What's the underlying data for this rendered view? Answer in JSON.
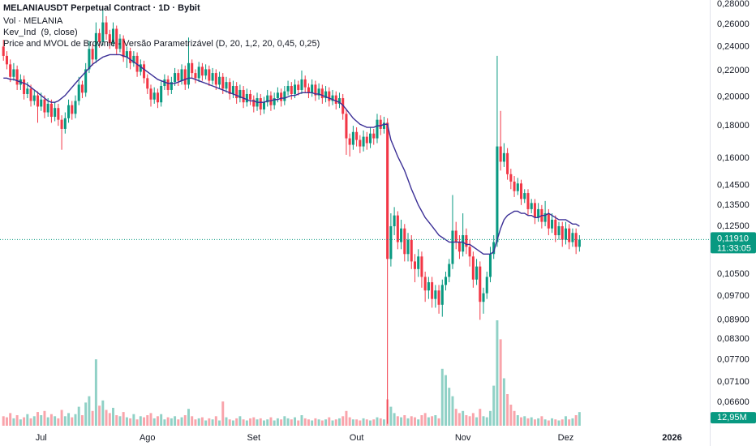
{
  "chart_data": {
    "type": "candlestick",
    "title": "MELANIAUSDT Perpetual Contract · 1D · Bybit",
    "volume_title": "Vol · MELANIA",
    "indicator_title": "Price and MVOL de Browniê - Versão Parametrizável (D, 20, 1,2, 20, 0,45, 0,25)",
    "log_scale": true,
    "grid": false,
    "up_color": "#089981",
    "down_color": "#f23645",
    "ylim": [
      0.0597,
      0.2842
    ],
    "yticks": [
      {
        "value": 0.28,
        "label": "0,28000"
      },
      {
        "value": 0.26,
        "label": "0,26000"
      },
      {
        "value": 0.24,
        "label": "0,24000"
      },
      {
        "value": 0.22,
        "label": "0,22000"
      },
      {
        "value": 0.2,
        "label": "0,20000"
      },
      {
        "value": 0.18,
        "label": "0,18000"
      },
      {
        "value": 0.16,
        "label": "0,16000"
      },
      {
        "value": 0.145,
        "label": "0,14500"
      },
      {
        "value": 0.135,
        "label": "0,13500"
      },
      {
        "value": 0.125,
        "label": "0,12500"
      },
      {
        "value": 0.105,
        "label": "0,10500"
      },
      {
        "value": 0.097,
        "label": "0,09700"
      },
      {
        "value": 0.089,
        "label": "0,08900"
      },
      {
        "value": 0.083,
        "label": "0,08300"
      },
      {
        "value": 0.077,
        "label": "0,07700"
      },
      {
        "value": 0.071,
        "label": "0,07100"
      },
      {
        "value": 0.066,
        "label": "0,06600"
      }
    ],
    "xlim": [
      -1,
      206
    ],
    "xticks": [
      {
        "value": 11,
        "label": "Jul"
      },
      {
        "value": 42,
        "label": "Ago"
      },
      {
        "value": 73,
        "label": "Set"
      },
      {
        "value": 103,
        "label": "Out"
      },
      {
        "value": 134,
        "label": "Nov"
      },
      {
        "value": 164,
        "label": "Dez"
      },
      {
        "value": 195,
        "label": "2026"
      }
    ],
    "last_price": 0.1191,
    "last_price_label": "0,11910",
    "countdown": "11:33:05",
    "volume_label": "12,95M",
    "ohlc": [
      [
        0.24,
        0.246,
        0.228,
        0.232
      ],
      [
        0.232,
        0.236,
        0.221,
        0.225
      ],
      [
        0.225,
        0.229,
        0.211,
        0.215
      ],
      [
        0.215,
        0.226,
        0.212,
        0.221
      ],
      [
        0.221,
        0.224,
        0.205,
        0.209
      ],
      [
        0.209,
        0.217,
        0.205,
        0.213
      ],
      [
        0.213,
        0.216,
        0.198,
        0.202
      ],
      [
        0.202,
        0.211,
        0.199,
        0.206
      ],
      [
        0.206,
        0.209,
        0.193,
        0.197
      ],
      [
        0.197,
        0.205,
        0.194,
        0.201
      ],
      [
        0.201,
        0.204,
        0.182,
        0.193
      ],
      [
        0.193,
        0.203,
        0.19,
        0.198
      ],
      [
        0.198,
        0.201,
        0.185,
        0.189
      ],
      [
        0.189,
        0.199,
        0.186,
        0.195
      ],
      [
        0.195,
        0.198,
        0.182,
        0.186
      ],
      [
        0.186,
        0.196,
        0.183,
        0.192
      ],
      [
        0.192,
        0.195,
        0.18,
        0.184
      ],
      [
        0.184,
        0.187,
        0.165,
        0.178
      ],
      [
        0.178,
        0.189,
        0.175,
        0.185
      ],
      [
        0.185,
        0.198,
        0.182,
        0.194
      ],
      [
        0.194,
        0.197,
        0.184,
        0.188
      ],
      [
        0.188,
        0.201,
        0.185,
        0.197
      ],
      [
        0.197,
        0.215,
        0.194,
        0.209
      ],
      [
        0.209,
        0.212,
        0.199,
        0.203
      ],
      [
        0.203,
        0.226,
        0.2,
        0.221
      ],
      [
        0.221,
        0.245,
        0.218,
        0.238
      ],
      [
        0.238,
        0.242,
        0.224,
        0.229
      ],
      [
        0.229,
        0.262,
        0.226,
        0.252
      ],
      [
        0.252,
        0.256,
        0.239,
        0.244
      ],
      [
        0.244,
        0.275,
        0.241,
        0.262
      ],
      [
        0.262,
        0.268,
        0.246,
        0.251
      ],
      [
        0.251,
        0.255,
        0.238,
        0.243
      ],
      [
        0.243,
        0.262,
        0.24,
        0.256
      ],
      [
        0.256,
        0.259,
        0.233,
        0.238
      ],
      [
        0.238,
        0.251,
        0.235,
        0.247
      ],
      [
        0.247,
        0.25,
        0.227,
        0.231
      ],
      [
        0.231,
        0.24,
        0.222,
        0.236
      ],
      [
        0.236,
        0.239,
        0.221,
        0.226
      ],
      [
        0.226,
        0.236,
        0.223,
        0.232
      ],
      [
        0.232,
        0.235,
        0.215,
        0.219
      ],
      [
        0.219,
        0.229,
        0.216,
        0.225
      ],
      [
        0.225,
        0.228,
        0.21,
        0.214
      ],
      [
        0.214,
        0.217,
        0.202,
        0.206
      ],
      [
        0.206,
        0.209,
        0.193,
        0.198
      ],
      [
        0.198,
        0.207,
        0.195,
        0.203
      ],
      [
        0.203,
        0.206,
        0.192,
        0.196
      ],
      [
        0.196,
        0.212,
        0.193,
        0.208
      ],
      [
        0.208,
        0.217,
        0.205,
        0.213
      ],
      [
        0.213,
        0.216,
        0.201,
        0.205
      ],
      [
        0.205,
        0.215,
        0.202,
        0.211
      ],
      [
        0.211,
        0.222,
        0.208,
        0.218
      ],
      [
        0.218,
        0.221,
        0.208,
        0.212
      ],
      [
        0.212,
        0.225,
        0.209,
        0.221
      ],
      [
        0.221,
        0.224,
        0.205,
        0.209
      ],
      [
        0.209,
        0.248,
        0.206,
        0.226
      ],
      [
        0.226,
        0.229,
        0.214,
        0.218
      ],
      [
        0.218,
        0.221,
        0.21,
        0.214
      ],
      [
        0.214,
        0.227,
        0.211,
        0.223
      ],
      [
        0.223,
        0.226,
        0.212,
        0.216
      ],
      [
        0.216,
        0.225,
        0.213,
        0.221
      ],
      [
        0.221,
        0.224,
        0.208,
        0.212
      ],
      [
        0.212,
        0.222,
        0.209,
        0.218
      ],
      [
        0.218,
        0.221,
        0.205,
        0.209
      ],
      [
        0.209,
        0.219,
        0.206,
        0.215
      ],
      [
        0.215,
        0.218,
        0.202,
        0.206
      ],
      [
        0.206,
        0.215,
        0.203,
        0.211
      ],
      [
        0.211,
        0.214,
        0.198,
        0.202
      ],
      [
        0.202,
        0.212,
        0.199,
        0.208
      ],
      [
        0.208,
        0.211,
        0.195,
        0.199
      ],
      [
        0.199,
        0.209,
        0.196,
        0.205
      ],
      [
        0.205,
        0.208,
        0.192,
        0.196
      ],
      [
        0.196,
        0.206,
        0.193,
        0.202
      ],
      [
        0.202,
        0.205,
        0.194,
        0.198
      ],
      [
        0.198,
        0.201,
        0.189,
        0.193
      ],
      [
        0.193,
        0.203,
        0.19,
        0.199
      ],
      [
        0.199,
        0.202,
        0.187,
        0.191
      ],
      [
        0.191,
        0.2,
        0.188,
        0.196
      ],
      [
        0.196,
        0.205,
        0.193,
        0.201
      ],
      [
        0.201,
        0.204,
        0.19,
        0.194
      ],
      [
        0.194,
        0.203,
        0.191,
        0.199
      ],
      [
        0.199,
        0.207,
        0.196,
        0.203
      ],
      [
        0.203,
        0.206,
        0.193,
        0.197
      ],
      [
        0.197,
        0.208,
        0.194,
        0.204
      ],
      [
        0.204,
        0.212,
        0.201,
        0.208
      ],
      [
        0.208,
        0.211,
        0.198,
        0.202
      ],
      [
        0.202,
        0.213,
        0.199,
        0.209
      ],
      [
        0.209,
        0.212,
        0.201,
        0.205
      ],
      [
        0.205,
        0.22,
        0.202,
        0.213
      ],
      [
        0.213,
        0.216,
        0.203,
        0.207
      ],
      [
        0.207,
        0.21,
        0.199,
        0.203
      ],
      [
        0.203,
        0.213,
        0.2,
        0.209
      ],
      [
        0.209,
        0.212,
        0.197,
        0.201
      ],
      [
        0.201,
        0.21,
        0.198,
        0.206
      ],
      [
        0.206,
        0.209,
        0.195,
        0.199
      ],
      [
        0.199,
        0.208,
        0.196,
        0.204
      ],
      [
        0.204,
        0.207,
        0.193,
        0.197
      ],
      [
        0.197,
        0.205,
        0.194,
        0.201
      ],
      [
        0.201,
        0.204,
        0.191,
        0.195
      ],
      [
        0.195,
        0.203,
        0.192,
        0.199
      ],
      [
        0.199,
        0.202,
        0.184,
        0.188
      ],
      [
        0.188,
        0.191,
        0.162,
        0.172
      ],
      [
        0.172,
        0.175,
        0.161,
        0.168
      ],
      [
        0.168,
        0.18,
        0.165,
        0.176
      ],
      [
        0.176,
        0.179,
        0.167,
        0.171
      ],
      [
        0.171,
        0.174,
        0.163,
        0.167
      ],
      [
        0.167,
        0.177,
        0.164,
        0.173
      ],
      [
        0.173,
        0.176,
        0.165,
        0.169
      ],
      [
        0.169,
        0.179,
        0.166,
        0.175
      ],
      [
        0.175,
        0.178,
        0.168,
        0.172
      ],
      [
        0.172,
        0.188,
        0.169,
        0.184
      ],
      [
        0.184,
        0.187,
        0.174,
        0.178
      ],
      [
        0.178,
        0.186,
        0.175,
        0.182
      ],
      [
        0.182,
        0.185,
        0.061,
        0.111
      ],
      [
        0.111,
        0.131,
        0.108,
        0.125
      ],
      [
        0.125,
        0.134,
        0.121,
        0.13
      ],
      [
        0.13,
        0.132,
        0.115,
        0.118
      ],
      [
        0.118,
        0.128,
        0.115,
        0.124
      ],
      [
        0.124,
        0.126,
        0.11,
        0.113
      ],
      [
        0.113,
        0.122,
        0.11,
        0.119
      ],
      [
        0.119,
        0.121,
        0.107,
        0.11
      ],
      [
        0.11,
        0.113,
        0.102,
        0.107
      ],
      [
        0.107,
        0.115,
        0.104,
        0.112
      ],
      [
        0.112,
        0.114,
        0.1,
        0.104
      ],
      [
        0.104,
        0.106,
        0.095,
        0.099
      ],
      [
        0.099,
        0.104,
        0.096,
        0.102
      ],
      [
        0.102,
        0.104,
        0.093,
        0.096
      ],
      [
        0.096,
        0.101,
        0.093,
        0.099
      ],
      [
        0.099,
        0.101,
        0.091,
        0.094
      ],
      [
        0.094,
        0.103,
        0.09,
        0.101
      ],
      [
        0.101,
        0.106,
        0.099,
        0.104
      ],
      [
        0.104,
        0.111,
        0.102,
        0.109
      ],
      [
        0.109,
        0.14,
        0.107,
        0.123
      ],
      [
        0.123,
        0.127,
        0.115,
        0.118
      ],
      [
        0.118,
        0.121,
        0.111,
        0.114
      ],
      [
        0.114,
        0.131,
        0.112,
        0.121
      ],
      [
        0.121,
        0.124,
        0.113,
        0.116
      ],
      [
        0.116,
        0.119,
        0.108,
        0.112
      ],
      [
        0.112,
        0.114,
        0.1,
        0.103
      ],
      [
        0.103,
        0.111,
        0.101,
        0.108
      ],
      [
        0.108,
        0.11,
        0.089,
        0.095
      ],
      [
        0.095,
        0.1,
        0.091,
        0.098
      ],
      [
        0.098,
        0.106,
        0.096,
        0.104
      ],
      [
        0.104,
        0.116,
        0.102,
        0.113
      ],
      [
        0.113,
        0.121,
        0.111,
        0.118
      ],
      [
        0.118,
        0.232,
        0.116,
        0.167
      ],
      [
        0.167,
        0.19,
        0.153,
        0.158
      ],
      [
        0.158,
        0.169,
        0.155,
        0.163
      ],
      [
        0.163,
        0.166,
        0.148,
        0.151
      ],
      [
        0.151,
        0.154,
        0.143,
        0.147
      ],
      [
        0.147,
        0.15,
        0.139,
        0.142
      ],
      [
        0.142,
        0.149,
        0.14,
        0.146
      ],
      [
        0.146,
        0.148,
        0.135,
        0.138
      ],
      [
        0.138,
        0.143,
        0.136,
        0.141
      ],
      [
        0.141,
        0.143,
        0.13,
        0.133
      ],
      [
        0.133,
        0.138,
        0.131,
        0.136
      ],
      [
        0.136,
        0.138,
        0.126,
        0.129
      ],
      [
        0.129,
        0.136,
        0.127,
        0.133
      ],
      [
        0.133,
        0.135,
        0.124,
        0.127
      ],
      [
        0.127,
        0.137,
        0.125,
        0.131
      ],
      [
        0.131,
        0.133,
        0.121,
        0.124
      ],
      [
        0.124,
        0.131,
        0.122,
        0.128
      ],
      [
        0.128,
        0.13,
        0.118,
        0.121
      ],
      [
        0.121,
        0.127,
        0.119,
        0.125
      ],
      [
        0.125,
        0.127,
        0.116,
        0.119
      ],
      [
        0.119,
        0.127,
        0.117,
        0.124
      ],
      [
        0.124,
        0.126,
        0.115,
        0.118
      ],
      [
        0.118,
        0.124,
        0.116,
        0.122
      ],
      [
        0.122,
        0.124,
        0.113,
        0.116
      ],
      [
        0.116,
        0.121,
        0.114,
        0.1191
      ]
    ],
    "volume": [
      9,
      8,
      12,
      7,
      10,
      6,
      8,
      11,
      7,
      9,
      13,
      10,
      14,
      8,
      11,
      9,
      7,
      15,
      9,
      12,
      8,
      11,
      18,
      10,
      22,
      28,
      14,
      63,
      19,
      24,
      15,
      12,
      17,
      10,
      9,
      13,
      8,
      7,
      11,
      6,
      9,
      8,
      10,
      12,
      7,
      9,
      11,
      6,
      8,
      7,
      9,
      6,
      8,
      10,
      16,
      9,
      6,
      7,
      8,
      5,
      7,
      6,
      9,
      5,
      23,
      8,
      6,
      5,
      7,
      9,
      6,
      5,
      7,
      8,
      6,
      7,
      5,
      6,
      8,
      5,
      7,
      6,
      9,
      7,
      6,
      8,
      5,
      10,
      7,
      6,
      5,
      7,
      6,
      5,
      6,
      8,
      5,
      6,
      7,
      9,
      14,
      8,
      6,
      6,
      5,
      7,
      6,
      5,
      6,
      8,
      7,
      6,
      25,
      18,
      12,
      9,
      8,
      10,
      7,
      9,
      8,
      6,
      10,
      12,
      8,
      9,
      10,
      7,
      54,
      48,
      36,
      28,
      16,
      12,
      14,
      10,
      9,
      12,
      8,
      16,
      9,
      8,
      14,
      38,
      100,
      82,
      45,
      30,
      20,
      14,
      10,
      8,
      9,
      7,
      8,
      6,
      7,
      9,
      6,
      5,
      7,
      6,
      5,
      6,
      9,
      6,
      7,
      10,
      12.95
    ],
    "ma": {
      "label": "Kev_Ind  (9, close)",
      "color": "#3b2f96",
      "values": [
        0.214,
        0.214,
        0.213,
        0.213,
        0.212,
        0.211,
        0.21,
        0.209,
        0.207,
        0.205,
        0.203,
        0.201,
        0.199,
        0.197,
        0.196,
        0.196,
        0.197,
        0.199,
        0.201,
        0.204,
        0.207,
        0.21,
        0.213,
        0.216,
        0.219,
        0.222,
        0.225,
        0.227,
        0.229,
        0.231,
        0.232,
        0.233,
        0.233,
        0.233,
        0.233,
        0.232,
        0.231,
        0.229,
        0.227,
        0.225,
        0.223,
        0.221,
        0.219,
        0.217,
        0.215,
        0.213,
        0.212,
        0.211,
        0.21,
        0.21,
        0.21,
        0.211,
        0.212,
        0.213,
        0.214,
        0.214,
        0.213,
        0.212,
        0.211,
        0.21,
        0.209,
        0.208,
        0.207,
        0.206,
        0.205,
        0.204,
        0.203,
        0.202,
        0.201,
        0.2,
        0.199,
        0.198,
        0.197,
        0.197,
        0.196,
        0.196,
        0.196,
        0.197,
        0.197,
        0.198,
        0.198,
        0.199,
        0.199,
        0.2,
        0.201,
        0.201,
        0.202,
        0.203,
        0.203,
        0.203,
        0.203,
        0.202,
        0.202,
        0.201,
        0.2,
        0.199,
        0.198,
        0.197,
        0.196,
        0.194,
        0.191,
        0.188,
        0.185,
        0.183,
        0.181,
        0.18,
        0.179,
        0.179,
        0.179,
        0.18,
        0.18,
        0.181,
        0.181,
        0.171,
        0.166,
        0.161,
        0.157,
        0.153,
        0.148,
        0.143,
        0.139,
        0.135,
        0.132,
        0.129,
        0.127,
        0.125,
        0.123,
        0.121,
        0.12,
        0.119,
        0.118,
        0.118,
        0.118,
        0.118,
        0.118,
        0.117,
        0.117,
        0.116,
        0.115,
        0.114,
        0.113,
        0.113,
        0.113,
        0.114,
        0.119,
        0.124,
        0.128,
        0.13,
        0.131,
        0.132,
        0.132,
        0.131,
        0.131,
        0.13,
        0.13,
        0.129,
        0.129,
        0.13,
        0.13,
        0.131,
        0.13,
        0.129,
        0.128,
        0.128,
        0.128,
        0.127,
        0.126,
        0.126,
        0.125
      ]
    }
  }
}
